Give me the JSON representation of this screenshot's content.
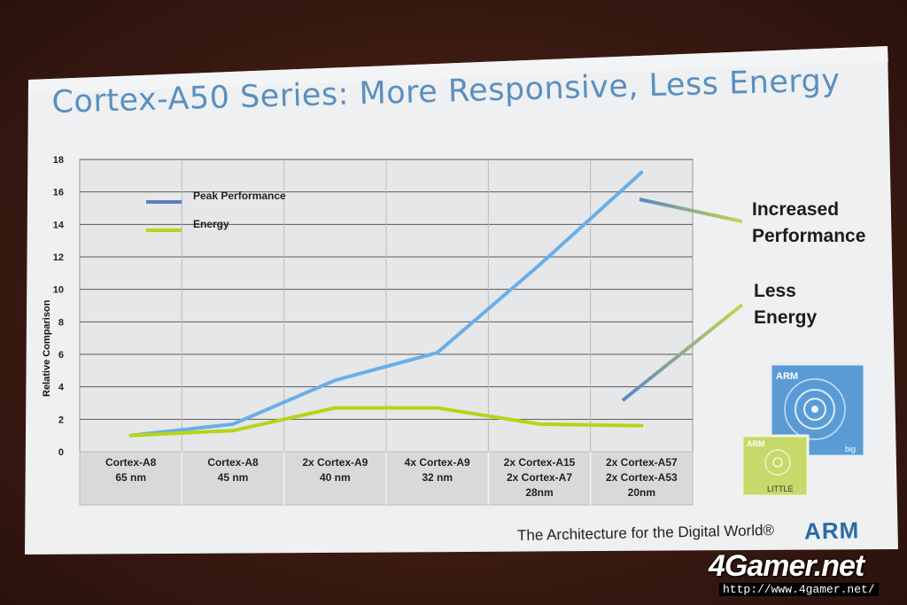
{
  "slide": {
    "title": "Cortex-A50 Series: More Responsive, Less Energy",
    "footer": "The Architecture for the Digital World®",
    "brand": "ARM",
    "annotations": {
      "performance": [
        "Increased",
        "Performance"
      ],
      "energy": [
        "Less",
        "Energy"
      ]
    },
    "big_little": {
      "big_label": "ARM",
      "big_sub": "big",
      "little_label": "ARM",
      "little_sub": "LITTLE",
      "big_color": "#5b9bd5",
      "little_color": "#c6d96a"
    }
  },
  "watermark": {
    "logo": "4Gamer.net",
    "url": "http://www.4gamer.net/"
  },
  "chart_data": {
    "type": "line",
    "ylabel": "Relative Comparison",
    "ylim": [
      0,
      18
    ],
    "yticks": [
      0,
      2,
      4,
      6,
      8,
      10,
      12,
      14,
      16,
      18
    ],
    "categories": [
      [
        "Cortex-A8",
        "65 nm"
      ],
      [
        "Cortex-A8",
        "45 nm"
      ],
      [
        "2x Cortex-A9",
        "40 nm"
      ],
      [
        "4x Cortex-A9",
        "32 nm"
      ],
      [
        "2x Cortex-A15",
        "2x Cortex-A7",
        "28nm"
      ],
      [
        "2x Cortex-A57",
        "2x Cortex-A53",
        "20nm"
      ]
    ],
    "series": [
      {
        "name": "Peak Performance",
        "color": "#6aaee8",
        "values": [
          1.0,
          1.7,
          4.4,
          6.1,
          11.5,
          17.2
        ]
      },
      {
        "name": "Energy",
        "color": "#b6d419",
        "values": [
          1.0,
          1.3,
          2.7,
          2.7,
          1.7,
          1.6
        ]
      }
    ],
    "grid": true,
    "legend": "top-left"
  }
}
